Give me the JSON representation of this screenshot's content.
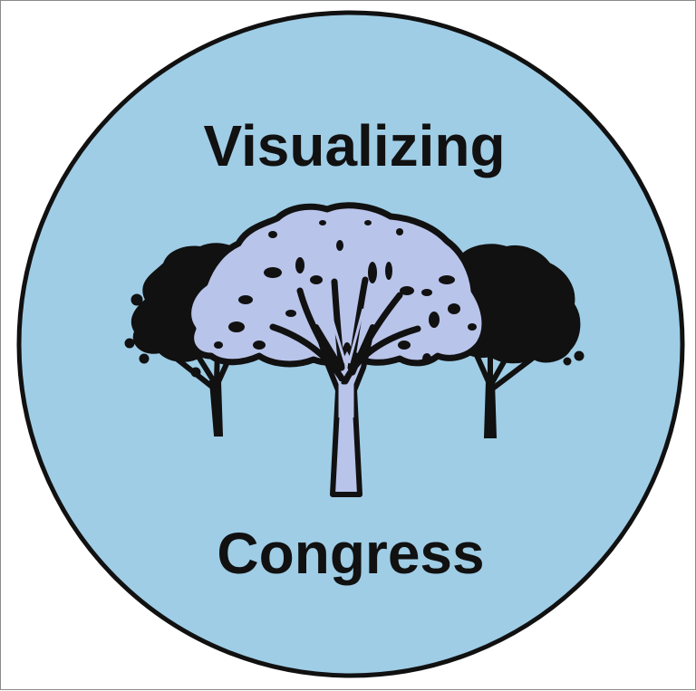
{
  "logo": {
    "title_top": "Visualizing",
    "title_bottom": "Congress",
    "colors": {
      "circle_fill": "#9fcde6",
      "circle_stroke": "#111111",
      "center_tree_fill": "#b9c4ea",
      "outline": "#111111",
      "side_tree_fill": "#111111"
    },
    "icons": [
      "center-tree-icon",
      "left-tree-icon",
      "right-tree-icon"
    ]
  }
}
